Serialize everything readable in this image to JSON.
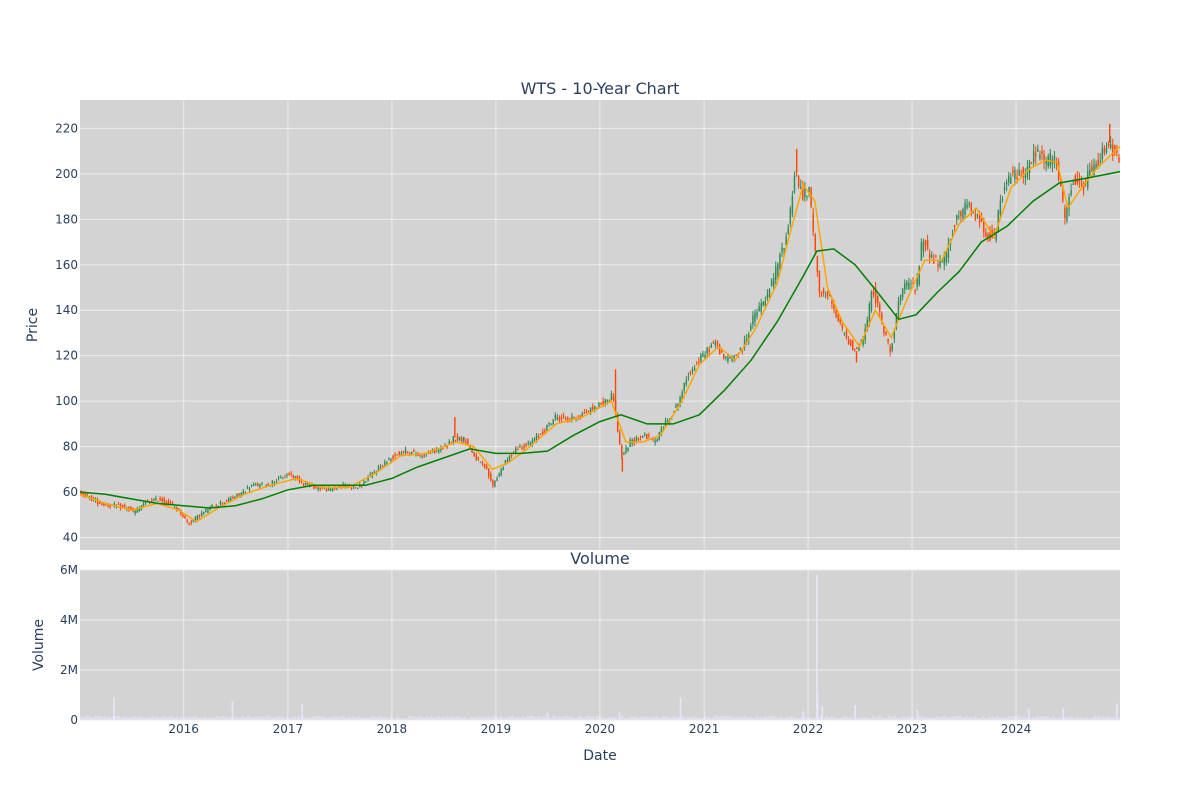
{
  "chart_data": [
    {
      "type": "candlestick",
      "title": "WTS - 10-Year Chart",
      "xlabel": "",
      "ylabel": "Price",
      "xlim": [
        "2015-01-02",
        "2024-12-31"
      ],
      "ylim": [
        34.5,
        232.5
      ],
      "yticks": [
        40,
        60,
        80,
        100,
        120,
        140,
        160,
        180,
        200,
        220
      ],
      "background": "#d3d3d3",
      "grid": true,
      "colors": {
        "increasing": "#2e8b57",
        "decreasing": "#ff4500",
        "short_ma": "#ffa500",
        "long_ma": "#008000"
      },
      "price_path": [
        [
          "2015-01-02",
          60
        ],
        [
          "2015-02-15",
          57
        ],
        [
          "2015-03-20",
          55
        ],
        [
          "2015-05-01",
          54
        ],
        [
          "2015-06-20",
          53
        ],
        [
          "2015-07-15",
          51
        ],
        [
          "2015-08-20",
          55
        ],
        [
          "2015-10-10",
          57
        ],
        [
          "2015-11-15",
          55
        ],
        [
          "2015-12-20",
          52
        ],
        [
          "2016-01-20",
          46
        ],
        [
          "2016-03-01",
          50
        ],
        [
          "2016-04-20",
          54
        ],
        [
          "2016-06-01",
          56
        ],
        [
          "2016-07-20",
          59
        ],
        [
          "2016-09-01",
          63
        ],
        [
          "2016-10-20",
          63
        ],
        [
          "2016-12-10",
          66
        ],
        [
          "2017-01-10",
          68
        ],
        [
          "2017-03-01",
          64
        ],
        [
          "2017-04-15",
          62
        ],
        [
          "2017-06-01",
          61
        ],
        [
          "2017-07-20",
          63
        ],
        [
          "2017-09-10",
          62
        ],
        [
          "2017-10-20",
          67
        ],
        [
          "2017-12-01",
          72
        ],
        [
          "2018-01-25",
          77
        ],
        [
          "2018-03-01",
          78
        ],
        [
          "2018-04-15",
          76
        ],
        [
          "2018-06-01",
          78
        ],
        [
          "2018-07-15",
          80
        ],
        [
          "2018-08-10",
          84
        ],
        [
          "2018-09-20",
          83
        ],
        [
          "2018-10-25",
          75
        ],
        [
          "2018-12-01",
          70
        ],
        [
          "2018-12-24",
          63
        ],
        [
          "2019-02-01",
          72
        ],
        [
          "2019-03-15",
          79
        ],
        [
          "2019-05-01",
          81
        ],
        [
          "2019-06-15",
          86
        ],
        [
          "2019-08-01",
          93
        ],
        [
          "2019-09-15",
          92
        ],
        [
          "2019-11-01",
          94
        ],
        [
          "2019-12-15",
          97
        ],
        [
          "2020-01-25",
          100
        ],
        [
          "2020-02-20",
          103
        ],
        [
          "2020-03-20",
          75
        ],
        [
          "2020-04-20",
          82
        ],
        [
          "2020-06-10",
          85
        ],
        [
          "2020-07-15",
          82
        ],
        [
          "2020-08-20",
          90
        ],
        [
          "2020-10-01",
          98
        ],
        [
          "2020-11-15",
          113
        ],
        [
          "2020-12-31",
          120
        ],
        [
          "2021-02-10",
          126
        ],
        [
          "2021-03-20",
          118
        ],
        [
          "2021-05-15",
          122
        ],
        [
          "2021-07-01",
          138
        ],
        [
          "2021-08-15",
          146
        ],
        [
          "2021-09-20",
          160
        ],
        [
          "2021-10-25",
          175
        ],
        [
          "2021-11-20",
          202
        ],
        [
          "2021-12-15",
          190
        ],
        [
          "2022-01-10",
          192
        ],
        [
          "2022-02-10",
          150
        ],
        [
          "2022-03-20",
          145
        ],
        [
          "2022-04-20",
          135
        ],
        [
          "2022-05-20",
          128
        ],
        [
          "2022-06-20",
          122
        ],
        [
          "2022-07-20",
          128
        ],
        [
          "2022-08-20",
          150
        ],
        [
          "2022-09-25",
          132
        ],
        [
          "2022-10-20",
          122
        ],
        [
          "2022-11-20",
          145
        ],
        [
          "2022-12-20",
          152
        ],
        [
          "2023-01-20",
          150
        ],
        [
          "2023-02-10",
          172
        ],
        [
          "2023-03-20",
          162
        ],
        [
          "2023-04-25",
          160
        ],
        [
          "2023-06-01",
          178
        ],
        [
          "2023-07-15",
          186
        ],
        [
          "2023-08-15",
          182
        ],
        [
          "2023-09-20",
          175
        ],
        [
          "2023-10-20",
          171
        ],
        [
          "2023-11-15",
          190
        ],
        [
          "2023-12-20",
          200
        ],
        [
          "2024-01-20",
          200
        ],
        [
          "2024-02-15",
          202
        ],
        [
          "2024-03-15",
          210
        ],
        [
          "2024-04-20",
          205
        ],
        [
          "2024-05-20",
          208
        ],
        [
          "2024-06-25",
          180
        ],
        [
          "2024-07-25",
          198
        ],
        [
          "2024-08-25",
          193
        ],
        [
          "2024-09-15",
          200
        ],
        [
          "2024-10-20",
          205
        ],
        [
          "2024-11-20",
          215
        ],
        [
          "2024-12-31",
          205
        ]
      ],
      "short_ma": [
        [
          "2015-01-02",
          59
        ],
        [
          "2015-04-01",
          55
        ],
        [
          "2015-07-01",
          52
        ],
        [
          "2015-10-01",
          55
        ],
        [
          "2015-12-15",
          52
        ],
        [
          "2016-02-15",
          47
        ],
        [
          "2016-05-01",
          53
        ],
        [
          "2016-08-01",
          59
        ],
        [
          "2016-11-01",
          63
        ],
        [
          "2017-02-01",
          66
        ],
        [
          "2017-05-01",
          62
        ],
        [
          "2017-08-01",
          62
        ],
        [
          "2017-11-01",
          68
        ],
        [
          "2018-02-01",
          76
        ],
        [
          "2018-05-01",
          77
        ],
        [
          "2018-08-15",
          82
        ],
        [
          "2018-10-15",
          80
        ],
        [
          "2018-12-20",
          70
        ],
        [
          "2019-02-15",
          73
        ],
        [
          "2019-05-01",
          80
        ],
        [
          "2019-08-01",
          90
        ],
        [
          "2019-11-01",
          93
        ],
        [
          "2020-02-10",
          100
        ],
        [
          "2020-04-01",
          82
        ],
        [
          "2020-06-01",
          82
        ],
        [
          "2020-08-01",
          85
        ],
        [
          "2020-10-15",
          100
        ],
        [
          "2020-12-15",
          116
        ],
        [
          "2021-02-20",
          124
        ],
        [
          "2021-04-20",
          118
        ],
        [
          "2021-07-01",
          132
        ],
        [
          "2021-09-15",
          152
        ],
        [
          "2021-11-01",
          175
        ],
        [
          "2021-12-15",
          195
        ],
        [
          "2022-01-25",
          188
        ],
        [
          "2022-03-10",
          150
        ],
        [
          "2022-05-01",
          135
        ],
        [
          "2022-07-01",
          124
        ],
        [
          "2022-08-25",
          140
        ],
        [
          "2022-10-20",
          128
        ],
        [
          "2022-12-15",
          145
        ],
        [
          "2023-02-15",
          162
        ],
        [
          "2023-04-15",
          162
        ],
        [
          "2023-06-15",
          178
        ],
        [
          "2023-08-15",
          185
        ],
        [
          "2023-10-15",
          172
        ],
        [
          "2023-12-15",
          194
        ],
        [
          "2024-02-15",
          202
        ],
        [
          "2024-04-15",
          206
        ],
        [
          "2024-05-25",
          205
        ],
        [
          "2024-07-01",
          185
        ],
        [
          "2024-08-25",
          195
        ],
        [
          "2024-10-15",
          203
        ],
        [
          "2024-12-31",
          212
        ]
      ],
      "long_ma": [
        [
          "2015-01-02",
          60
        ],
        [
          "2015-04-01",
          59
        ],
        [
          "2015-07-01",
          57
        ],
        [
          "2015-10-01",
          55
        ],
        [
          "2016-01-01",
          54
        ],
        [
          "2016-04-01",
          53
        ],
        [
          "2016-07-01",
          54
        ],
        [
          "2016-10-01",
          57
        ],
        [
          "2017-01-01",
          61
        ],
        [
          "2017-04-01",
          63
        ],
        [
          "2017-07-01",
          63
        ],
        [
          "2017-10-01",
          63
        ],
        [
          "2018-01-01",
          66
        ],
        [
          "2018-04-01",
          71
        ],
        [
          "2018-07-01",
          75
        ],
        [
          "2018-10-01",
          79
        ],
        [
          "2019-01-01",
          77
        ],
        [
          "2019-04-01",
          77
        ],
        [
          "2019-07-01",
          78
        ],
        [
          "2019-10-01",
          85
        ],
        [
          "2020-01-01",
          91
        ],
        [
          "2020-03-15",
          94
        ],
        [
          "2020-06-15",
          90
        ],
        [
          "2020-09-15",
          90
        ],
        [
          "2020-12-15",
          94
        ],
        [
          "2021-03-15",
          105
        ],
        [
          "2021-06-15",
          118
        ],
        [
          "2021-09-15",
          135
        ],
        [
          "2021-12-15",
          155
        ],
        [
          "2022-02-01",
          166
        ],
        [
          "2022-04-01",
          167
        ],
        [
          "2022-06-15",
          160
        ],
        [
          "2022-09-01",
          148
        ],
        [
          "2022-11-15",
          136
        ],
        [
          "2023-01-15",
          138
        ],
        [
          "2023-04-01",
          148
        ],
        [
          "2023-06-15",
          157
        ],
        [
          "2023-09-01",
          170
        ],
        [
          "2023-12-01",
          177
        ],
        [
          "2024-03-01",
          188
        ],
        [
          "2024-06-01",
          196
        ],
        [
          "2024-09-01",
          198
        ],
        [
          "2024-12-31",
          201
        ]
      ],
      "events": [
        [
          "2018-08-10",
          93
        ],
        [
          "2020-02-25",
          114
        ],
        [
          "2020-03-20",
          69
        ],
        [
          "2021-11-22",
          211
        ],
        [
          "2022-06-20",
          117
        ],
        [
          "2024-11-25",
          222
        ]
      ]
    },
    {
      "type": "bar",
      "title": "Volume",
      "xlabel": "Date",
      "ylabel": "Volume",
      "xlim": [
        "2015-01-02",
        "2024-12-31"
      ],
      "ylim": [
        0,
        6000000
      ],
      "yticks": [
        0,
        2000000,
        4000000,
        6000000
      ],
      "ytick_labels": [
        "0",
        "2M",
        "4M",
        "6M"
      ],
      "xticks": [
        "2016-01-01",
        "2017-01-01",
        "2018-01-01",
        "2019-01-01",
        "2020-01-01",
        "2021-01-01",
        "2022-01-01",
        "2023-01-01",
        "2024-01-01"
      ],
      "xtick_labels": [
        "2016",
        "2017",
        "2018",
        "2019",
        "2020",
        "2021",
        "2022",
        "2023",
        "2024"
      ],
      "background": "#d3d3d3",
      "bar_color": "#e6e6fa",
      "grid": true,
      "baseline_volume": 200000,
      "spikes": [
        [
          "2015-05-01",
          900000
        ],
        [
          "2016-06-20",
          750000
        ],
        [
          "2017-02-20",
          620000
        ],
        [
          "2019-07-01",
          300000
        ],
        [
          "2020-03-10",
          320000
        ],
        [
          "2020-10-10",
          900000
        ],
        [
          "2021-12-15",
          350000
        ],
        [
          "2022-02-01",
          5800000
        ],
        [
          "2022-02-03",
          1100000
        ],
        [
          "2022-02-20",
          550000
        ],
        [
          "2022-06-15",
          600000
        ],
        [
          "2023-01-20",
          400000
        ],
        [
          "2024-02-15",
          450000
        ],
        [
          "2024-06-15",
          500000
        ],
        [
          "2024-12-20",
          650000
        ]
      ]
    }
  ]
}
